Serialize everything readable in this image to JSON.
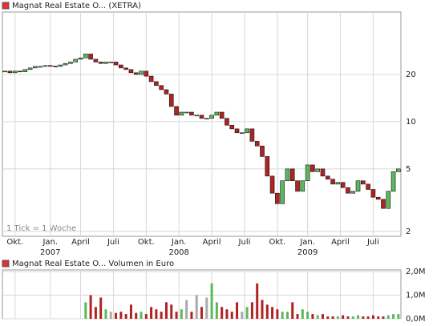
{
  "chart_data": [
    {
      "type": "candlestick",
      "title": "Magnat Real Estate O... (XETRA)",
      "note": "1 Tick = 1 Woche",
      "x": [
        0,
        2,
        4,
        6,
        8,
        10,
        12,
        14,
        16,
        18,
        20,
        22,
        24,
        26,
        28,
        30,
        32,
        34,
        36,
        38,
        40,
        42,
        44,
        46,
        48,
        50,
        52,
        54,
        56,
        58,
        60,
        62,
        64,
        66,
        68,
        70,
        72,
        74,
        76,
        78,
        80,
        82,
        84,
        86,
        88,
        90,
        92,
        94,
        96,
        98,
        100,
        102,
        104,
        106,
        108,
        110,
        112,
        114,
        116,
        118,
        120,
        122,
        124,
        126,
        128,
        130,
        132,
        134,
        136,
        138,
        140,
        142,
        144,
        146,
        148,
        150,
        152,
        154,
        156
      ],
      "open": [
        20.8,
        21,
        20.5,
        21,
        20.8,
        21.5,
        22,
        22.5,
        22.5,
        22.8,
        22.6,
        22.5,
        23,
        23.5,
        24,
        25,
        25.5,
        27,
        25,
        24,
        23.5,
        24,
        24,
        23,
        22,
        21.5,
        20.5,
        20,
        21,
        19.5,
        18,
        17,
        16,
        15,
        12.5,
        11,
        11.5,
        11.5,
        11,
        11,
        10.5,
        10.5,
        11,
        11.5,
        10.5,
        9.5,
        9,
        8.5,
        8.5,
        9,
        7.5,
        7,
        6,
        4.5,
        3.5,
        3,
        4.2,
        5,
        4.2,
        3.6,
        4.2,
        5.3,
        4.8,
        5,
        4.5,
        4.3,
        4.0,
        4.1,
        3.8,
        3.5,
        3.6,
        4.2,
        4.0,
        3.7,
        3.3,
        3.2,
        2.8,
        3.6,
        4.8
      ],
      "close": [
        21,
        20.5,
        21,
        20.8,
        21.5,
        22,
        22.5,
        22.5,
        22.8,
        22.6,
        22.5,
        23,
        23.5,
        24,
        25,
        25.5,
        27,
        25,
        24,
        23.5,
        24,
        24,
        23,
        22,
        21.5,
        20.5,
        20,
        21,
        19.5,
        18,
        17,
        16,
        15,
        12.5,
        11,
        11.5,
        11.5,
        11,
        11,
        10.5,
        10.5,
        11,
        11.5,
        10.5,
        9.5,
        9,
        8.5,
        8.5,
        9,
        7.5,
        7,
        6,
        4.5,
        3.5,
        3,
        4.2,
        5,
        4.2,
        3.6,
        4.2,
        5.3,
        4.8,
        5,
        4.5,
        4.3,
        4.0,
        4.1,
        3.8,
        3.5,
        3.6,
        4.2,
        4.0,
        3.7,
        3.3,
        3.2,
        2.8,
        3.6,
        4.8,
        5.0
      ],
      "up_color": "#5cb85c",
      "down_color": "#b22222",
      "flat_color": "#aaaaaa",
      "log_scale": true,
      "grid": true,
      "ylim": [
        1.86,
        50
      ],
      "yticks": [
        2,
        5,
        10,
        20
      ],
      "xlim": [
        -1,
        157
      ],
      "xticks": [
        {
          "value": 4,
          "label": "Okt."
        },
        {
          "value": 18,
          "label": "Jan."
        },
        {
          "value": 30,
          "label": "April"
        },
        {
          "value": 43,
          "label": "Juli"
        },
        {
          "value": 56,
          "label": "Okt."
        },
        {
          "value": 69,
          "label": "Jan."
        },
        {
          "value": 82,
          "label": "April"
        },
        {
          "value": 95,
          "label": "Juli"
        },
        {
          "value": 108,
          "label": "Okt."
        },
        {
          "value": 120,
          "label": "Jan."
        },
        {
          "value": 133,
          "label": "April"
        },
        {
          "value": 146,
          "label": "Juli"
        }
      ],
      "xtick_years": [
        {
          "value": 18,
          "label": "2007"
        },
        {
          "value": 69,
          "label": "2008"
        },
        {
          "value": 120,
          "label": "2009"
        }
      ]
    },
    {
      "type": "bar",
      "title": "Magnat Real Estate O... Volumen in Euro",
      "grid": true,
      "values": [
        0,
        0,
        0,
        0,
        0,
        0,
        0,
        0,
        0,
        0,
        0,
        0,
        0,
        0,
        0,
        0,
        700000,
        1000000,
        500000,
        900000,
        400000,
        300000,
        250000,
        300000,
        200000,
        600000,
        250000,
        300000,
        200000,
        500000,
        400000,
        300000,
        700000,
        600000,
        300000,
        400000,
        800000,
        300000,
        1000000,
        500000,
        900000,
        1500000,
        700000,
        500000,
        400000,
        300000,
        700000,
        300000,
        500000,
        700000,
        1500000,
        800000,
        600000,
        500000,
        400000,
        300000,
        300000,
        700000,
        200000,
        400000,
        300000,
        200000,
        150000,
        200000,
        100000,
        100000,
        100000,
        150000,
        100000,
        100000,
        150000,
        100000,
        100000,
        150000,
        100000,
        100000,
        150000,
        200000,
        200000
      ],
      "ylim": [
        0,
        2070000
      ],
      "yticks": [
        {
          "value": 0,
          "label": "0,0M"
        },
        {
          "value": 1000000,
          "label": "1,0M"
        },
        {
          "value": 2000000,
          "label": "2,0M"
        }
      ]
    }
  ]
}
